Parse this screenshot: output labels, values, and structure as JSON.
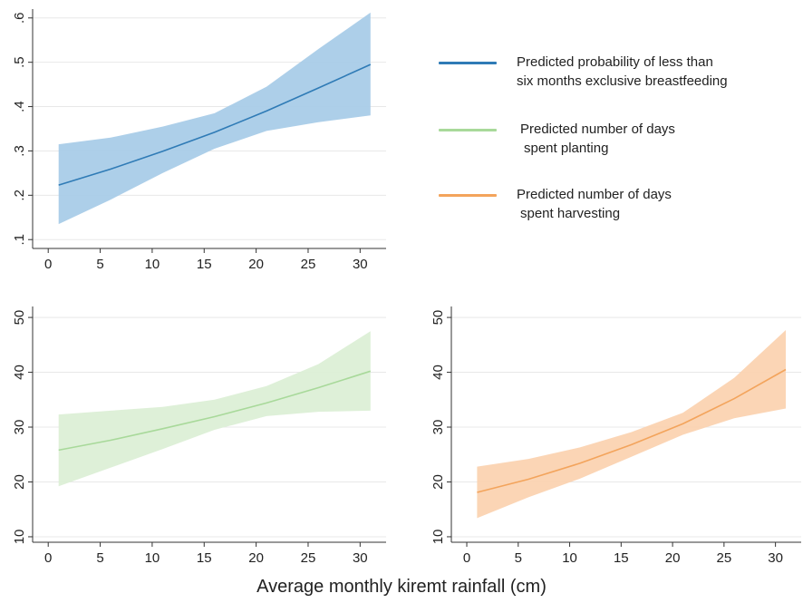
{
  "colors": {
    "blue": "#2f7bb6",
    "blue_fill": "#a9cce8",
    "green": "#a8d99a",
    "green_fill": "#dcefd6",
    "orange": "#f3a45c",
    "orange_fill": "#fbd3b1",
    "grid": "#e8e8e8",
    "axis": "#333333"
  },
  "legend": [
    {
      "lines": [
        "Predicted probability of less than",
        "six months exclusive breastfeeding"
      ],
      "color_key": "blue"
    },
    {
      "lines": [
        "Predicted number of days",
        "spent planting"
      ],
      "color_key": "green"
    },
    {
      "lines": [
        "Predicted number of days",
        "spent harvesting"
      ],
      "color_key": "orange"
    }
  ],
  "x_axis_label": "Average monthly kiremt rainfall (cm)",
  "chart_data": [
    {
      "type": "area",
      "name": "breastfeeding",
      "color_key": "blue",
      "xlim": [
        -1.5,
        32.5
      ],
      "ylim": [
        0.08,
        0.62
      ],
      "xticks": [
        0,
        5,
        10,
        15,
        20,
        25,
        30
      ],
      "yticks": [
        0.1,
        0.2,
        0.3,
        0.4,
        0.5,
        0.6
      ],
      "ytick_labels": [
        ".1",
        ".2",
        ".3",
        ".4",
        ".5",
        ".6"
      ],
      "x": [
        1,
        6,
        11,
        16,
        21,
        26,
        31
      ],
      "y": [
        0.223,
        0.259,
        0.299,
        0.342,
        0.39,
        0.442,
        0.495
      ],
      "lower": [
        0.135,
        0.19,
        0.25,
        0.305,
        0.345,
        0.365,
        0.38
      ],
      "upper": [
        0.315,
        0.33,
        0.355,
        0.385,
        0.445,
        0.53,
        0.612
      ]
    },
    {
      "type": "area",
      "name": "planting",
      "color_key": "green",
      "xlim": [
        -1.5,
        32.5
      ],
      "ylim": [
        9,
        52
      ],
      "xticks": [
        0,
        5,
        10,
        15,
        20,
        25,
        30
      ],
      "yticks": [
        10,
        20,
        30,
        40,
        50
      ],
      "ytick_labels": [
        "10",
        "20",
        "30",
        "40",
        "50"
      ],
      "x": [
        1,
        6,
        11,
        16,
        21,
        26,
        31
      ],
      "y": [
        25.8,
        27.6,
        29.7,
        31.9,
        34.4,
        37.2,
        40.2
      ],
      "lower": [
        19.2,
        22.6,
        26.0,
        29.5,
        32.0,
        32.8,
        33.0
      ],
      "upper": [
        32.3,
        33.0,
        33.7,
        35.0,
        37.5,
        41.5,
        47.5
      ]
    },
    {
      "type": "area",
      "name": "harvesting",
      "color_key": "orange",
      "xlim": [
        -1.5,
        32.5
      ],
      "ylim": [
        9,
        52
      ],
      "xticks": [
        0,
        5,
        10,
        15,
        20,
        25,
        30
      ],
      "yticks": [
        10,
        20,
        30,
        40,
        50
      ],
      "ytick_labels": [
        "10",
        "20",
        "30",
        "40",
        "50"
      ],
      "x": [
        1,
        6,
        11,
        16,
        21,
        26,
        31
      ],
      "y": [
        18.1,
        20.5,
        23.4,
        26.8,
        30.6,
        35.2,
        40.5
      ],
      "lower": [
        13.4,
        17.2,
        20.6,
        24.6,
        28.6,
        31.6,
        33.4
      ],
      "upper": [
        22.8,
        24.2,
        26.3,
        29.1,
        32.6,
        39.0,
        47.7
      ]
    }
  ]
}
